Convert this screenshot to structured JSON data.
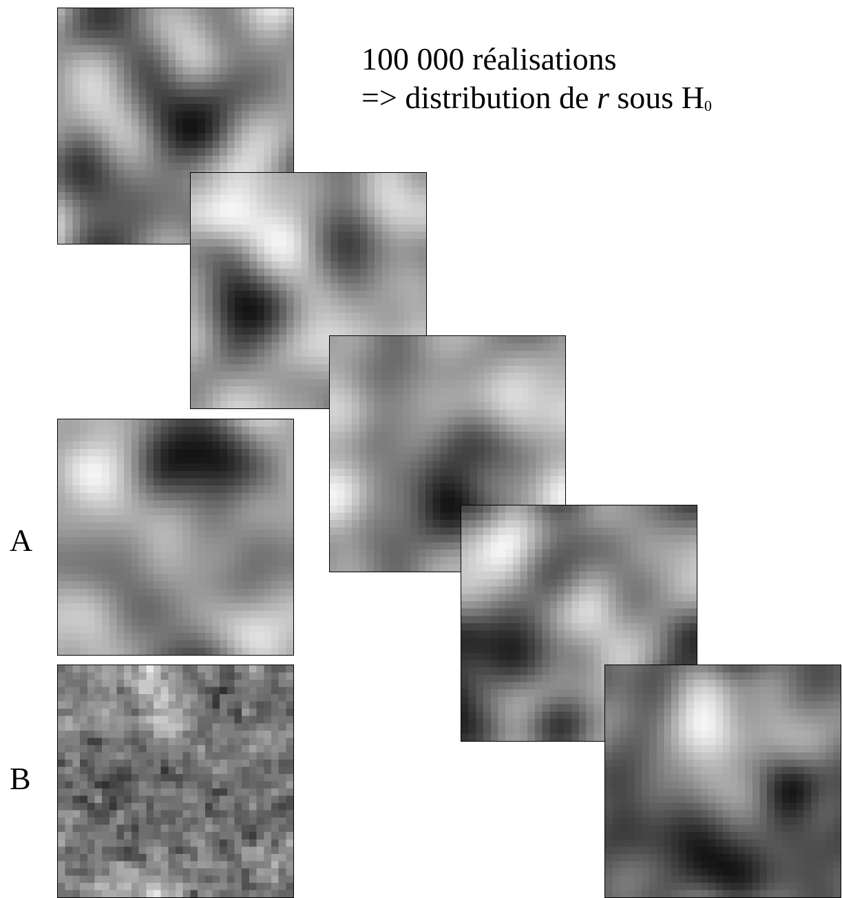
{
  "heading": {
    "line1": "100 000 réalisations",
    "line2_prefix": "=> distribution de ",
    "line2_var": "r",
    "line2_mid": " sous H",
    "line2_sub": "0"
  },
  "labels": {
    "a": "A",
    "b": "B"
  }
}
